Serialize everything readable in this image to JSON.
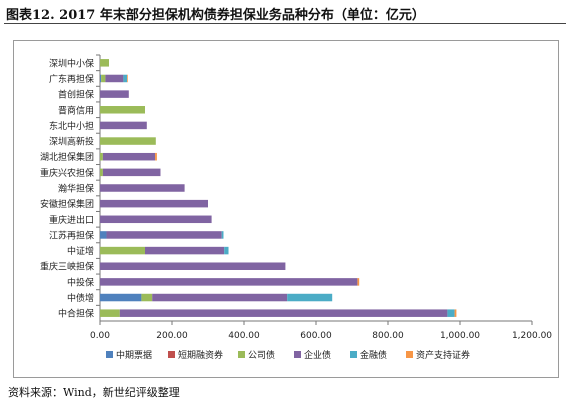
{
  "header": {
    "title": "图表12.    2017 年末部分担保机构债券担保业务品种分布（单位：亿元）"
  },
  "footer": {
    "source": "资料来源：Wind，新世纪评级整理"
  },
  "chart_data": {
    "type": "bar",
    "orientation": "horizontal",
    "stacked": true,
    "title": "",
    "xlabel": "",
    "ylabel": "",
    "xlim": [
      0,
      1200
    ],
    "x_ticks": [
      "0.00",
      "200.00",
      "400.00",
      "600.00",
      "800.00",
      "1,000.00",
      "1,200.00"
    ],
    "grid": false,
    "legend_position": "bottom",
    "categories": [
      "深圳中小保",
      "广东再担保",
      "首创担保",
      "晋商信用",
      "东北中小担",
      "深圳高新投",
      "湖北担保集团",
      "重庆兴农担保",
      "瀚华担保",
      "安徽担保集团",
      "重庆进出口",
      "江苏再担保",
      "中证增",
      "重庆三峡担保",
      "中投保",
      "中债增",
      "中合担保"
    ],
    "series": [
      {
        "name": "中期票据",
        "color": "#4f81bd",
        "values": [
          0,
          3,
          0,
          0,
          0,
          0,
          0,
          0,
          0,
          0,
          0,
          18,
          0,
          0,
          0,
          115,
          0
        ]
      },
      {
        "name": "短期融资券",
        "color": "#c0504d",
        "values": [
          0,
          0,
          0,
          0,
          0,
          0,
          0,
          0,
          0,
          0,
          0,
          0,
          0,
          0,
          0,
          0,
          0
        ]
      },
      {
        "name": "公司债",
        "color": "#9bbb59",
        "values": [
          25,
          12,
          0,
          125,
          0,
          155,
          8,
          8,
          0,
          0,
          0,
          0,
          125,
          0,
          0,
          30,
          55
        ]
      },
      {
        "name": "企业债",
        "color": "#8064a2",
        "values": [
          0,
          50,
          80,
          0,
          130,
          0,
          145,
          160,
          235,
          300,
          310,
          320,
          220,
          515,
          715,
          375,
          910
        ]
      },
      {
        "name": "金融债",
        "color": "#4bacc6",
        "values": [
          0,
          10,
          0,
          0,
          0,
          0,
          0,
          0,
          0,
          0,
          0,
          5,
          12,
          0,
          0,
          125,
          20
        ]
      },
      {
        "name": "资产支持证券",
        "color": "#f79646",
        "values": [
          0,
          2,
          0,
          0,
          0,
          0,
          5,
          0,
          0,
          0,
          0,
          0,
          0,
          0,
          5,
          0,
          5
        ]
      }
    ]
  }
}
